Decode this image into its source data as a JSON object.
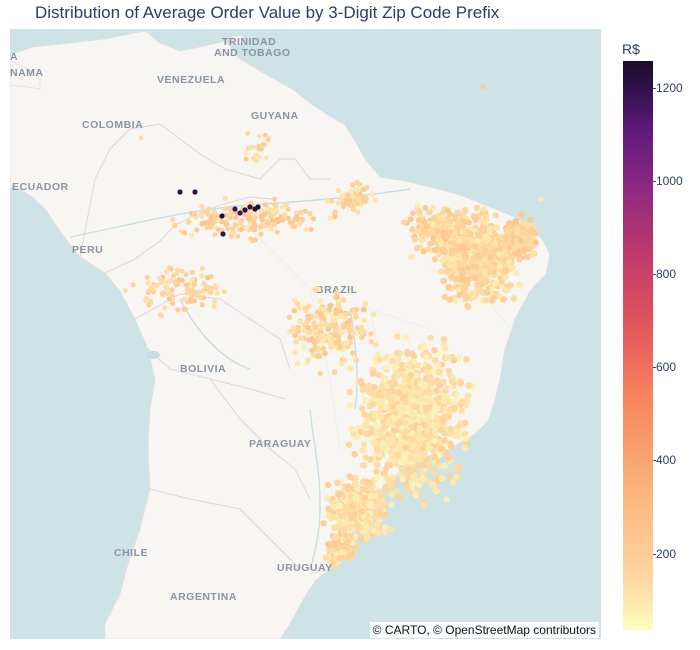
{
  "title": "Distribution of Average Order Value by 3-Digit Zip Code Prefix",
  "attribution": "© CARTO, © OpenStreetMap contributors",
  "colorbar": {
    "title": "R$",
    "ticks": [
      "1200",
      "1000",
      "800",
      "600",
      "400",
      "200"
    ]
  },
  "map_labels": {
    "trinidad1": "TRINIDAD",
    "trinidad2": "AND TOBAGO",
    "venezuela": "VENEZUELA",
    "guyana": "GUYANA",
    "colombia": "COLOMBIA",
    "panama": "NAMA",
    "ecuador": "ECUADOR",
    "peru": "PERU",
    "brazil": "BRAZIL",
    "bolivia": "BOLIVIA",
    "paraguay": "PARAGUAY",
    "chile": "CHILE",
    "uruguay": "URUGUAY",
    "argentina": "ARGENTINA",
    "corner": "A"
  },
  "chart_data": {
    "type": "scatter",
    "title": "Distribution of Average Order Value by 3-Digit Zip Code Prefix",
    "map_style": "carto-positron",
    "color_variable": "average order value (R$)",
    "color_scale": "magma (reversed)",
    "color_range": [
      100,
      1270
    ],
    "colorbar_ticks": [
      200,
      400,
      600,
      800,
      1000,
      1200
    ],
    "highlights": [
      {
        "region": "northwest Amazonas",
        "value_range": [
          1100,
          1270
        ]
      },
      {
        "region": "coastal northeast and south-east Brazil",
        "value_range": [
          120,
          400
        ]
      }
    ]
  }
}
